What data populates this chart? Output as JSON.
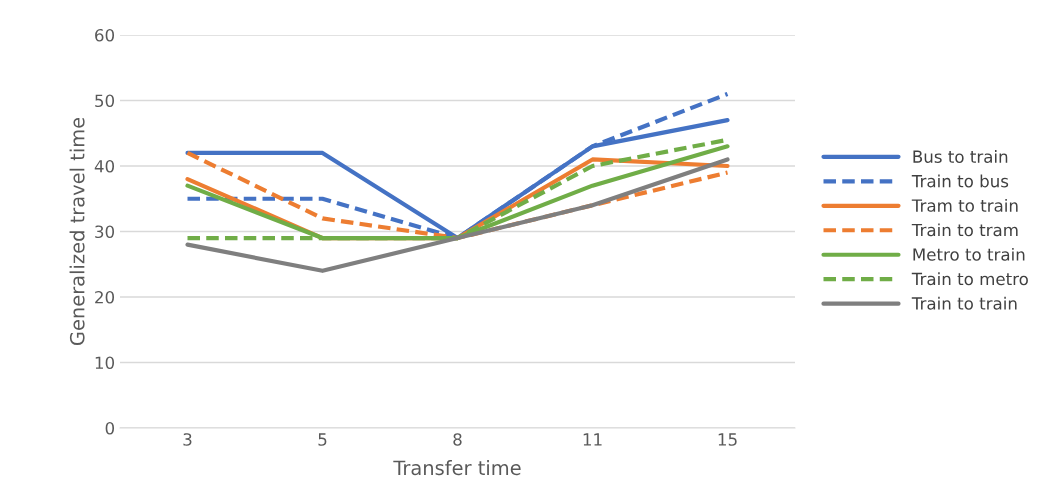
{
  "chart_data": {
    "type": "line",
    "xlabel": "Transfer time",
    "ylabel": "Generalized travel time",
    "categories": [
      "3",
      "5",
      "8",
      "11",
      "15"
    ],
    "ylim": [
      0,
      60
    ],
    "yticks": [
      0,
      10,
      20,
      30,
      40,
      50,
      60
    ],
    "grid": "y",
    "legend": "right",
    "marker": "none",
    "series": [
      {
        "name": "Bus to train",
        "color": "#4472c4",
        "line_style": "solid",
        "values": [
          42,
          42,
          29,
          43,
          47
        ]
      },
      {
        "name": "Train to bus",
        "color": "#4472c4",
        "line_style": "dashed",
        "values": [
          35,
          35,
          29,
          43,
          51
        ]
      },
      {
        "name": "Tram to train",
        "color": "#ed7d31",
        "line_style": "solid",
        "values": [
          38,
          29,
          29,
          41,
          40
        ]
      },
      {
        "name": "Train to tram",
        "color": "#ed7d31",
        "line_style": "dashed",
        "values": [
          42,
          32,
          29,
          34,
          39
        ]
      },
      {
        "name": "Metro to train",
        "color": "#70ad47",
        "line_style": "solid",
        "values": [
          37,
          29,
          29,
          37,
          43
        ]
      },
      {
        "name": "Train to metro",
        "color": "#70ad47",
        "line_style": "dashed",
        "values": [
          29,
          29,
          29,
          40,
          44
        ]
      },
      {
        "name": "Train to train",
        "color": "#7f7f7f",
        "line_style": "solid",
        "values": [
          28,
          24,
          29,
          34,
          41
        ]
      }
    ]
  }
}
